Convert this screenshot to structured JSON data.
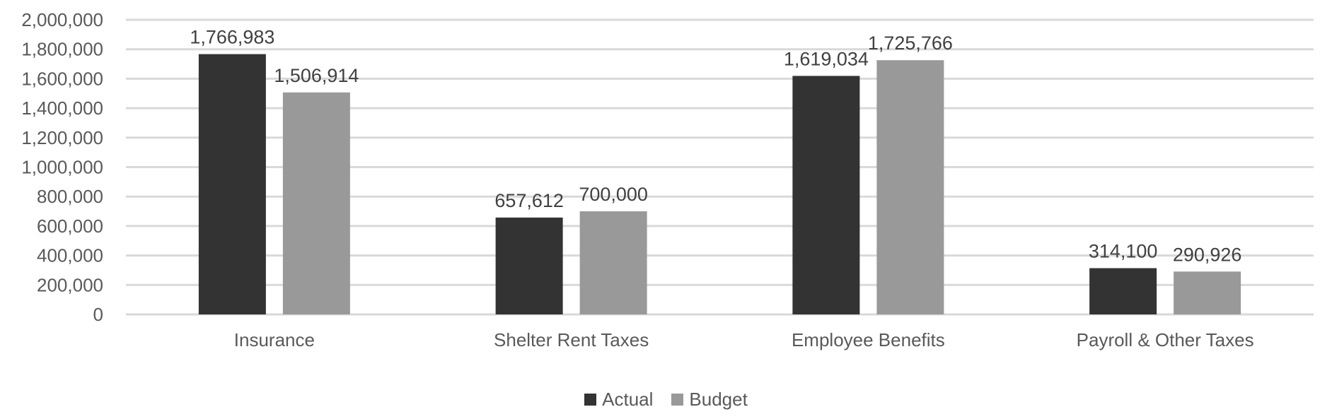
{
  "chart_data": {
    "type": "bar",
    "categories": [
      "Insurance",
      "Shelter Rent Taxes",
      "Employee Benefits",
      "Payroll & Other Taxes"
    ],
    "series": [
      {
        "name": "Actual",
        "values": [
          1766983,
          657612,
          1619034,
          314100
        ],
        "color": "#333333"
      },
      {
        "name": "Budget",
        "values": [
          1506914,
          700000,
          1725766,
          290926
        ],
        "color": "#999999"
      }
    ],
    "data_labels": [
      [
        "1,766,983",
        "657,612",
        "1,619,034",
        "314,100"
      ],
      [
        "1,506,914",
        "700,000",
        "1,725,766",
        "290,926"
      ]
    ],
    "y_ticks": [
      "0",
      "200,000",
      "400,000",
      "600,000",
      "800,000",
      "1,000,000",
      "1,200,000",
      "1,400,000",
      "1,600,000",
      "1,800,000",
      "2,000,000"
    ],
    "ylim": [
      0,
      2000000
    ],
    "title": "",
    "xlabel": "",
    "ylabel": "",
    "grid": true,
    "legend_position": "bottom-center",
    "gridline_color": "#d9d9d9"
  }
}
